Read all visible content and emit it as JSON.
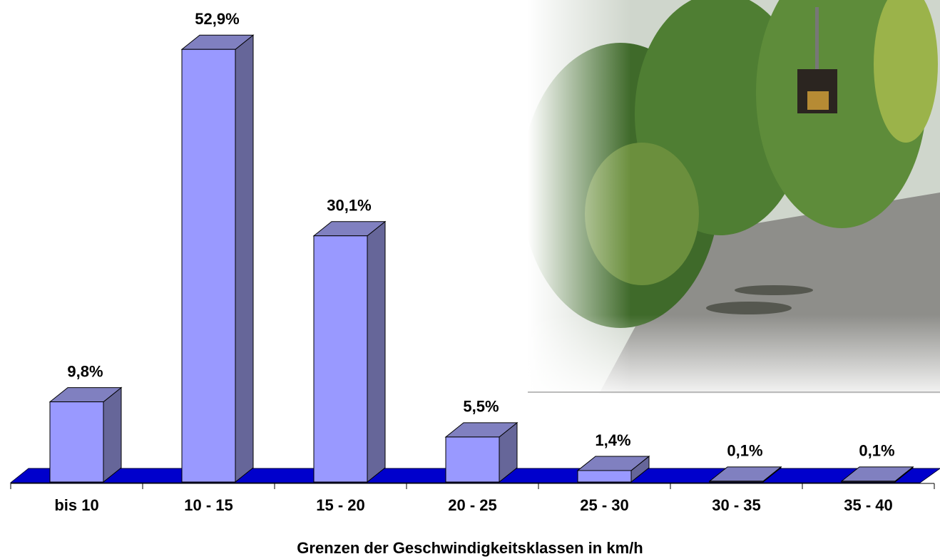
{
  "chart_data": {
    "type": "bar",
    "categories": [
      "bis 10",
      "10 - 15",
      "15 - 20",
      "20 - 25",
      "25 - 30",
      "30 - 35",
      "35 - 40"
    ],
    "values": [
      9.8,
      52.9,
      30.1,
      5.5,
      1.4,
      0.1,
      0.1
    ],
    "value_labels": [
      "9,8%",
      "52,9%",
      "30,1%",
      "5,5%",
      "1,4%",
      "0,1%",
      "0,1%"
    ],
    "xlabel": "Grenzen der Geschwindigkeitsklassen in km/h",
    "color": "#9999ff",
    "side_color": "#666699",
    "top_color": "#8080c0",
    "floor_color": "#0000cc"
  }
}
